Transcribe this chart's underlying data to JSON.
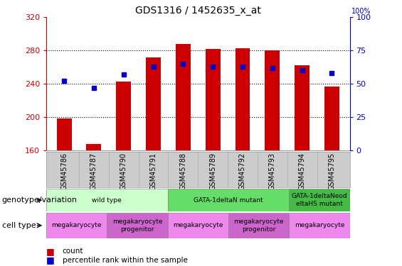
{
  "title": "GDS1316 / 1452635_x_at",
  "samples": [
    "GSM45786",
    "GSM45787",
    "GSM45790",
    "GSM45791",
    "GSM45788",
    "GSM45789",
    "GSM45792",
    "GSM45793",
    "GSM45794",
    "GSM45795"
  ],
  "counts": [
    198,
    168,
    243,
    272,
    288,
    282,
    283,
    280,
    262,
    237
  ],
  "percentile_ranks": [
    52,
    47,
    57,
    63,
    65,
    63,
    63,
    62,
    60,
    58
  ],
  "ymin": 160,
  "ymax": 320,
  "yticks": [
    160,
    200,
    240,
    280,
    320
  ],
  "y2min": 0,
  "y2max": 100,
  "y2ticks": [
    0,
    25,
    50,
    75,
    100
  ],
  "bar_color": "#cc0000",
  "dot_color": "#0000cc",
  "genotype_groups": [
    {
      "label": "wild type",
      "start": 0,
      "end": 4,
      "color": "#ccffcc"
    },
    {
      "label": "GATA-1deltaN mutant",
      "start": 4,
      "end": 8,
      "color": "#66dd66"
    },
    {
      "label": "GATA-1deltaNeod\neltaHS mutant",
      "start": 8,
      "end": 10,
      "color": "#44bb44"
    }
  ],
  "celltype_groups": [
    {
      "label": "megakaryocyte",
      "start": 0,
      "end": 2,
      "color": "#ee88ee"
    },
    {
      "label": "megakaryocyte\nprogenitor",
      "start": 2,
      "end": 4,
      "color": "#cc66cc"
    },
    {
      "label": "megakaryocyte",
      "start": 4,
      "end": 6,
      "color": "#ee88ee"
    },
    {
      "label": "megakaryocyte\nprogenitor",
      "start": 6,
      "end": 8,
      "color": "#cc66cc"
    },
    {
      "label": "megakaryocyte",
      "start": 8,
      "end": 10,
      "color": "#ee88ee"
    }
  ],
  "legend_count_label": "count",
  "legend_percentile_label": "percentile rank within the sample",
  "genotype_row_label": "genotype/variation",
  "celltype_row_label": "cell type",
  "tick_color_left": "#cc0000",
  "tick_color_right": "#0000cc",
  "xlabel_bg": "#cccccc",
  "grid_yticks": [
    200,
    240,
    280
  ]
}
